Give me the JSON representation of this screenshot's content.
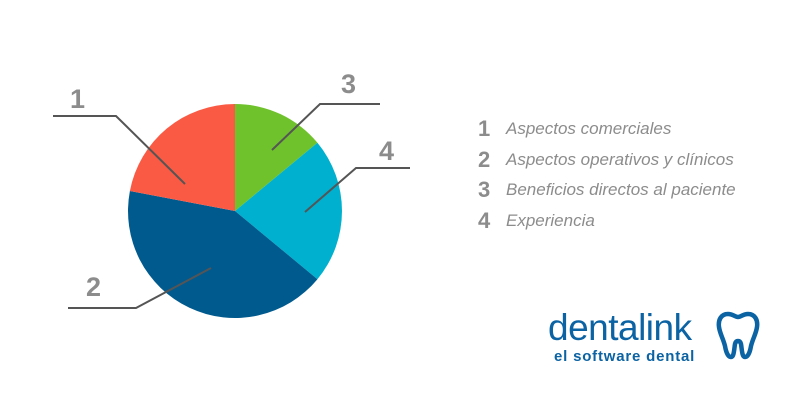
{
  "chart_data": {
    "type": "pie",
    "slices": [
      {
        "label": "1",
        "name": "Aspectos comerciales",
        "value": 22,
        "color": "#fa5a44"
      },
      {
        "label": "2",
        "name": "Aspectos operativos y clínicos",
        "value": 42,
        "color": "#005a8e"
      },
      {
        "label": "3",
        "name": "Beneficios directos al paciente",
        "value": 14,
        "color": "#6fc22c"
      },
      {
        "label": "4",
        "name": "Experiencia",
        "value": 22,
        "color": "#00b0cf"
      }
    ],
    "legend": "right"
  },
  "legend": {
    "items": [
      {
        "number": "1",
        "label": "Aspectos comerciales"
      },
      {
        "number": "2",
        "label": "Aspectos operativos y clínicos"
      },
      {
        "number": "3",
        "label": "Beneficios directos al paciente"
      },
      {
        "number": "4",
        "label": "Experiencia"
      }
    ]
  },
  "callouts": [
    "1",
    "2",
    "3",
    "4"
  ],
  "logo": {
    "wordmark": "dentalink",
    "tagline": "el software dental",
    "color": "#0b63a3",
    "icon": "tooth-icon"
  }
}
